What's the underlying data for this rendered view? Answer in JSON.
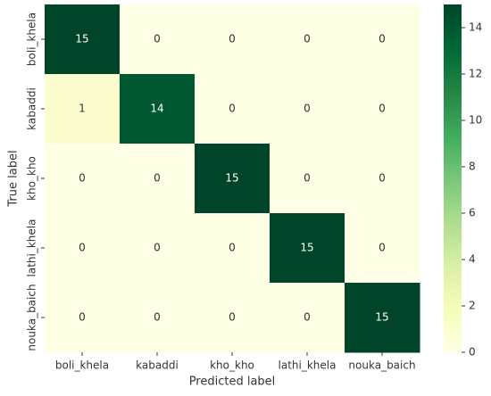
{
  "chart_data": {
    "type": "heatmap",
    "x_label": "Predicted label",
    "y_label": "True label",
    "x_categories": [
      "boli_khela",
      "kabaddi",
      "kho_kho",
      "lathi_khela",
      "nouka_baich"
    ],
    "y_categories": [
      "boli_khela",
      "kabaddi",
      "kho_kho",
      "lathi_khela",
      "nouka_baich"
    ],
    "values": [
      [
        15,
        0,
        0,
        0,
        0
      ],
      [
        1,
        14,
        0,
        0,
        0
      ],
      [
        0,
        0,
        15,
        0,
        0
      ],
      [
        0,
        0,
        0,
        15,
        0
      ],
      [
        0,
        0,
        0,
        0,
        15
      ]
    ],
    "clim": [
      0,
      15
    ],
    "cticks": [
      0,
      2,
      4,
      6,
      8,
      10,
      12,
      14
    ],
    "colormap": [
      "#ffffe5",
      "#f7fcb9",
      "#d9f0a3",
      "#addd8e",
      "#78c679",
      "#41ab5d",
      "#238443",
      "#006837",
      "#004529"
    ]
  }
}
